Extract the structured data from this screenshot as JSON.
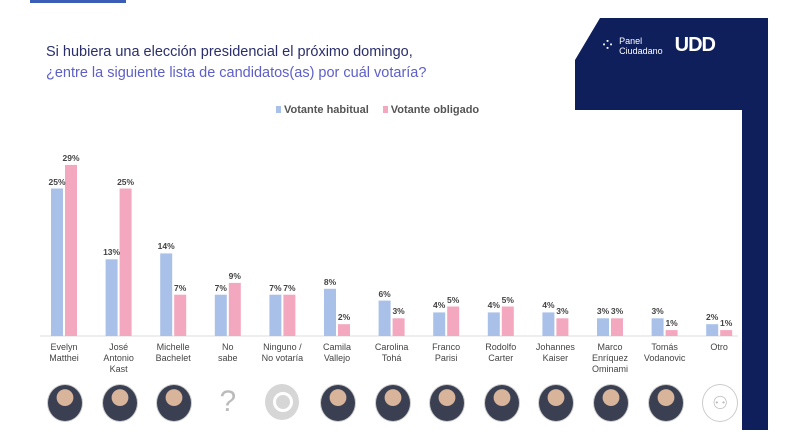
{
  "title": {
    "line1": "Si hubiera una elección presidencial el próximo domingo,",
    "line2": "¿entre la siguiente lista de candidatos(as) por cuál votaría?"
  },
  "logo": {
    "line1": "Panel",
    "line2": "Ciudadano",
    "brand": "UDD"
  },
  "colors": {
    "navy": "#0e1f5b",
    "habitual": "#a9c1e8",
    "obligado": "#f4a8bf"
  },
  "chart_data": {
    "type": "bar",
    "title": "",
    "legend_position": "top",
    "grid": false,
    "ylim": [
      0,
      30
    ],
    "categories": [
      "Evelyn Matthei",
      "José Antonio Kast",
      "Michelle Bachelet",
      "No sabe",
      "Ninguno / No votaría",
      "Camila Vallejo",
      "Carolina Tohá",
      "Franco Parisi",
      "Rodolfo Carter",
      "Johannes Kaiser",
      "Marco Enríquez Ominami",
      "Tomás Vodanovic",
      "Otro"
    ],
    "series": [
      {
        "name": "Votante habitual",
        "values": [
          25,
          13,
          14,
          7,
          7,
          8,
          6,
          4,
          4,
          4,
          3,
          3,
          2
        ]
      },
      {
        "name": "Votante obligado",
        "values": [
          29,
          25,
          7,
          9,
          7,
          2,
          3,
          5,
          5,
          3,
          3,
          1,
          1
        ]
      }
    ]
  },
  "avatars": [
    "photo",
    "photo",
    "photo",
    "question-mark-icon",
    "prohibited-icon",
    "photo",
    "photo",
    "photo",
    "photo",
    "photo",
    "photo",
    "photo",
    "people-icon"
  ]
}
